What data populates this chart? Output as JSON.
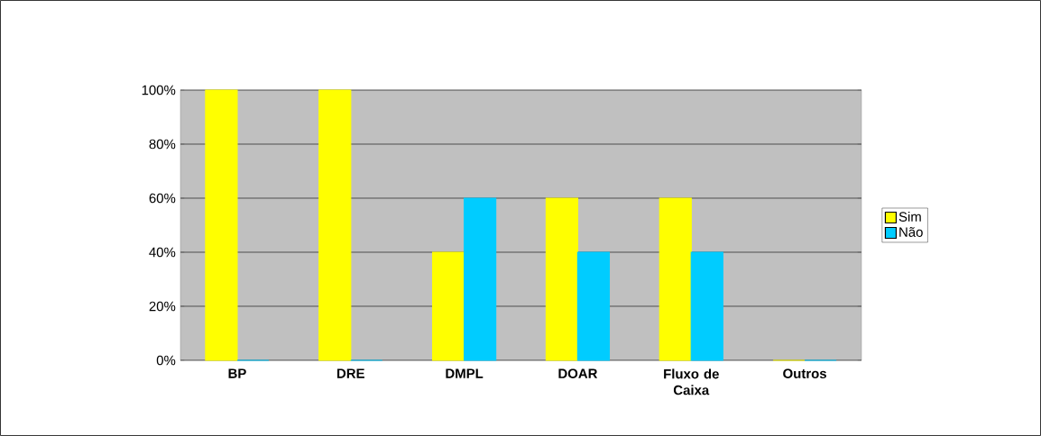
{
  "chart_data": {
    "type": "bar",
    "categories": [
      "BP",
      "DRE",
      "DMPL",
      "DOAR",
      "Fluxo de Caixa",
      "Outros"
    ],
    "series": [
      {
        "name": "Sim",
        "color": "#ffff00",
        "values": [
          100,
          100,
          40,
          60,
          60,
          0
        ]
      },
      {
        "name": "Não",
        "color": "#00ccff",
        "values": [
          0,
          0,
          60,
          40,
          40,
          0
        ]
      }
    ],
    "ylim": [
      0,
      100
    ],
    "yticks": [
      {
        "value": 0,
        "label": "0%"
      },
      {
        "value": 20,
        "label": "20%"
      },
      {
        "value": 40,
        "label": "40%"
      },
      {
        "value": 60,
        "label": "60%"
      },
      {
        "value": 80,
        "label": "80%"
      },
      {
        "value": 100,
        "label": "100%"
      }
    ],
    "grid": "y",
    "legend": "right"
  }
}
